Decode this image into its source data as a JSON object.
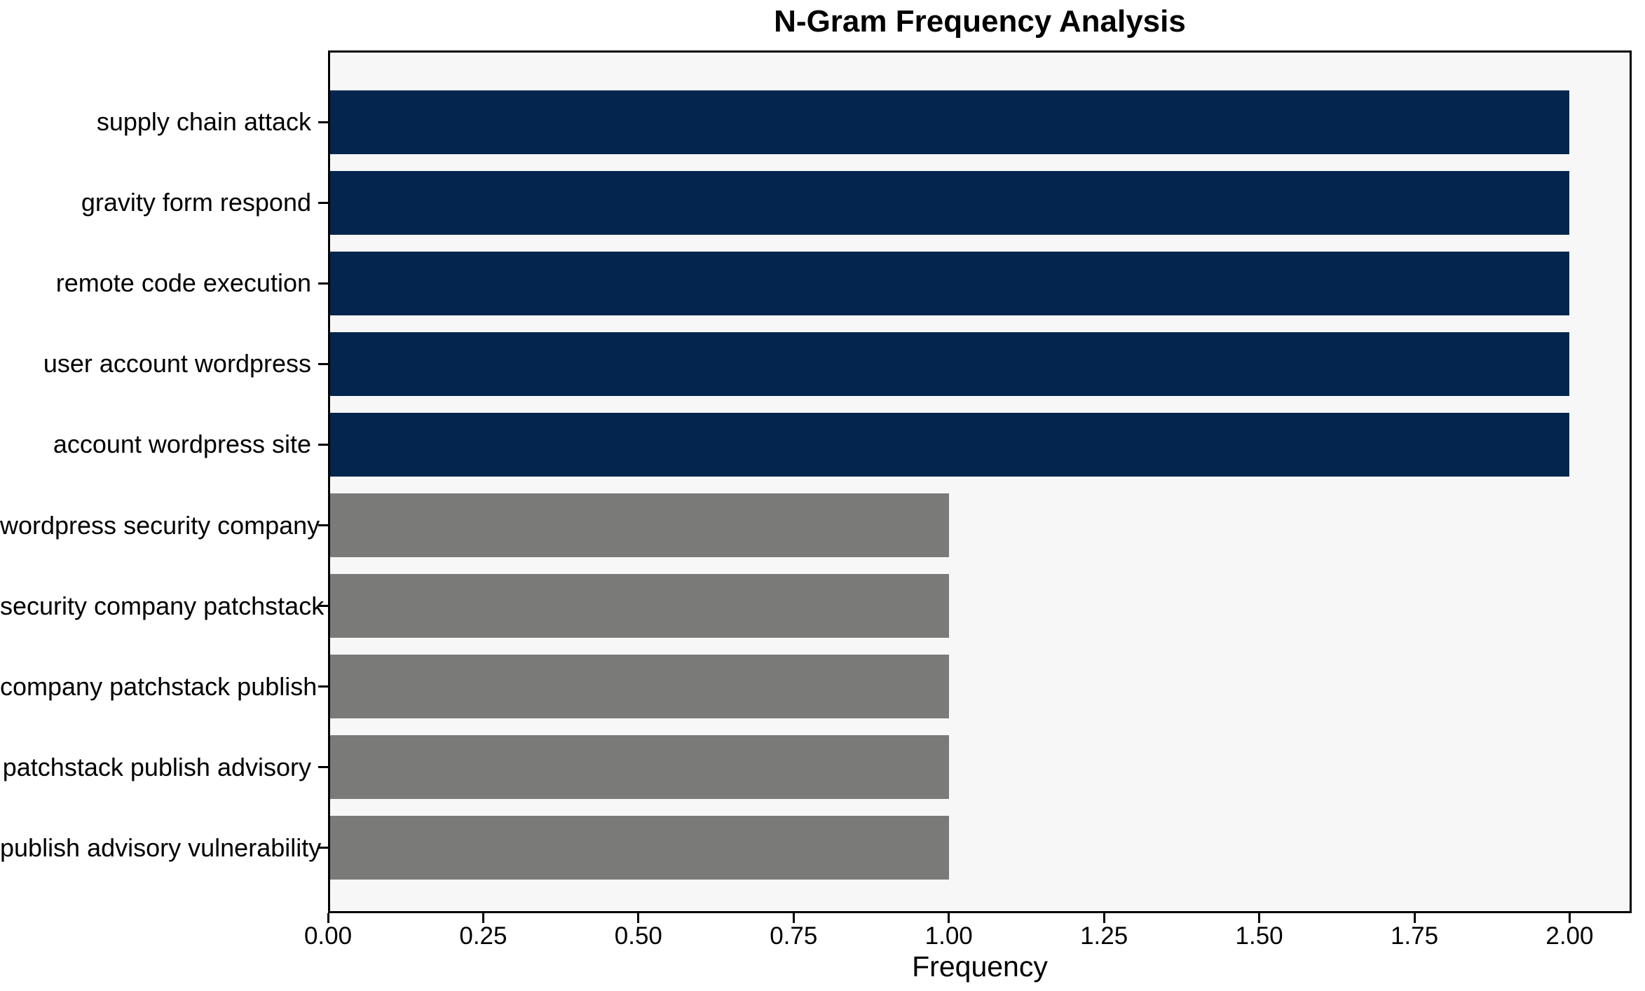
{
  "chart_data": {
    "type": "bar",
    "orientation": "horizontal",
    "title": "N-Gram Frequency Analysis",
    "xlabel": "Frequency",
    "ylabel": "",
    "categories": [
      "supply chain attack",
      "gravity form respond",
      "remote code execution",
      "user account wordpress",
      "account wordpress site",
      "wordpress security company",
      "security company patchstack",
      "company patchstack publish",
      "patchstack publish advisory",
      "publish advisory vulnerability"
    ],
    "values": [
      2,
      2,
      2,
      2,
      2,
      1,
      1,
      1,
      1,
      1
    ],
    "bar_colors": [
      "#03254e",
      "#03254e",
      "#03254e",
      "#03254e",
      "#03254e",
      "#7a7a78",
      "#7a7a78",
      "#7a7a78",
      "#7a7a78",
      "#7a7a78"
    ],
    "x_ticks": [
      "0.00",
      "0.25",
      "0.50",
      "0.75",
      "1.00",
      "1.25",
      "1.50",
      "1.75",
      "2.00"
    ],
    "x_tick_step": 0.25,
    "xlim": [
      0,
      2.1
    ],
    "grid": false,
    "legend": false,
    "colors": {
      "highlight_bar": "#03254e",
      "default_bar": "#7a7a78",
      "plot_background": "#f7f7f7",
      "figure_background": "#ffffff",
      "spine": "#000000",
      "text": "#000000"
    }
  }
}
